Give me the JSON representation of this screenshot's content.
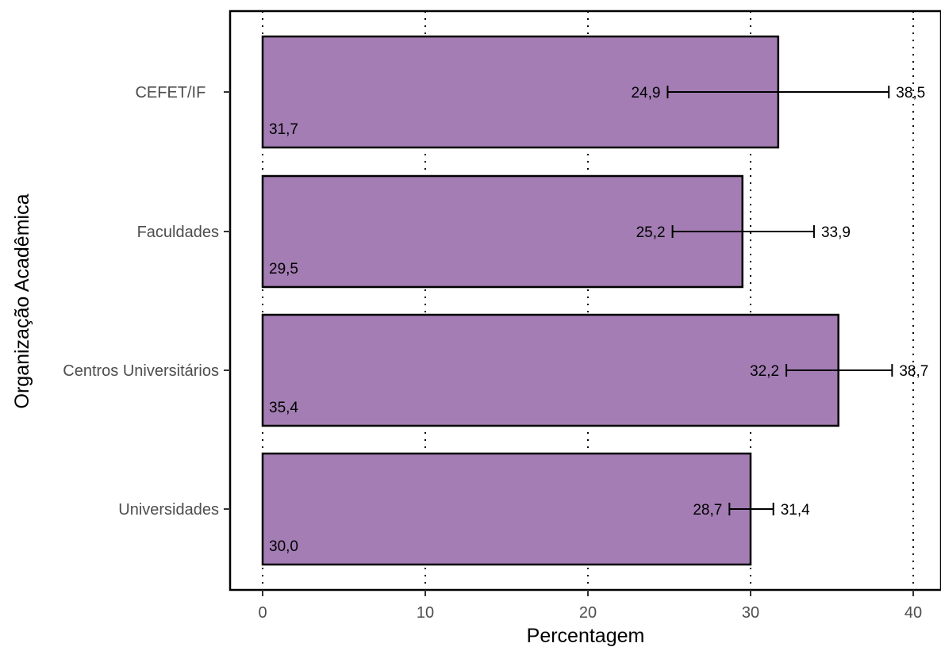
{
  "chart_data": {
    "type": "bar",
    "orientation": "horizontal",
    "xlabel": "Percentagem",
    "ylabel": "Organização Acadêmica",
    "xlim": [
      -2,
      42
    ],
    "x_ticks": [
      "0",
      "10",
      "20",
      "30",
      "40"
    ],
    "x_tick_values": [
      0,
      10,
      20,
      30,
      40
    ],
    "grid": "vertical dotted at major ticks",
    "bar_color": "#a37db3",
    "bar_outline": "#000000",
    "categories": [
      "CEFET/IF",
      "Faculdades",
      "Centros Universitários",
      "Universidades"
    ],
    "category_labels": [
      "CEFET/IF   ",
      "Faculdades",
      "Centros Universitários",
      "Universidades"
    ],
    "values": [
      31.7,
      29.5,
      35.4,
      30.0
    ],
    "value_labels": [
      "31,7",
      "29,5",
      "35,4",
      "30,0"
    ],
    "ci_low": [
      24.9,
      25.2,
      32.2,
      28.7
    ],
    "ci_low_labels": [
      "24,9",
      "25,2",
      "32,2",
      "28,7"
    ],
    "ci_high": [
      38.5,
      33.9,
      38.7,
      31.4
    ],
    "ci_high_labels": [
      "38,5",
      "33,9",
      "38,7",
      "31,4"
    ]
  }
}
